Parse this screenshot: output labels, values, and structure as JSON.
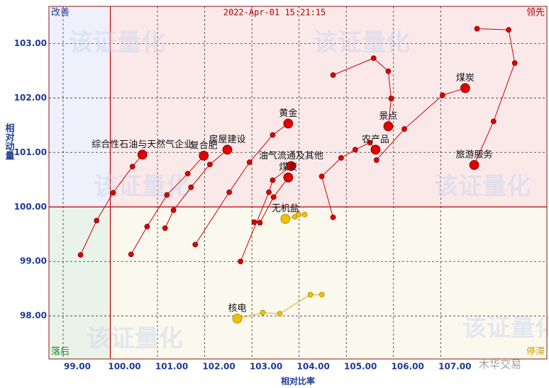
{
  "chart_data": {
    "type": "rrg",
    "timestamp": "2022-Apr-01 15:21:15",
    "x_label": "相对比率",
    "y_label": "相对动量",
    "quadrants": {
      "top_left": "改善",
      "top_right": "领先",
      "bottom_left": "落后",
      "bottom_right": "停滞"
    },
    "watermark": "该证量化",
    "logo": "木华交易",
    "reference": {
      "x": 100,
      "y": 100
    },
    "xlim": [
      98.7,
      109.25
    ],
    "ylim": [
      97.21,
      103.68
    ],
    "xticks": [
      {
        "value": 99,
        "label": "99.00"
      },
      {
        "value": 100,
        "label": "100.00"
      },
      {
        "value": 101,
        "label": "101.00"
      },
      {
        "value": 102,
        "label": "102.00"
      },
      {
        "value": 103,
        "label": "103.00"
      },
      {
        "value": 104,
        "label": "104.00"
      },
      {
        "value": 105,
        "label": "105.00"
      },
      {
        "value": 106,
        "label": "106.00"
      },
      {
        "value": 107,
        "label": "107.00"
      }
    ],
    "yticks": [
      {
        "value": 98,
        "label": "98.00"
      },
      {
        "value": 99,
        "label": "99.00"
      },
      {
        "value": 100,
        "label": "100.00"
      },
      {
        "value": 101,
        "label": "101.00"
      },
      {
        "value": 102,
        "label": "102.00"
      },
      {
        "value": 103,
        "label": "103.00"
      }
    ],
    "grid": true,
    "series": [
      {
        "name": "综合性石油与天然气企业",
        "color": "#e00000",
        "x": [
          99.37,
          99.71,
          100.06,
          100.47,
          100.68
        ],
        "values": [
          99.12,
          99.75,
          100.26,
          100.74,
          100.96
        ]
      },
      {
        "name": "复合肥",
        "color": "#e00000",
        "x": [
          100.44,
          100.78,
          101.2,
          101.64,
          101.98
        ],
        "values": [
          99.13,
          99.64,
          100.22,
          100.61,
          100.94
        ]
      },
      {
        "name": "房屋建设",
        "color": "#e00000",
        "x": [
          101.16,
          101.34,
          101.71,
          102.11,
          102.48
        ],
        "values": [
          99.61,
          99.94,
          100.36,
          100.78,
          101.05
        ]
      },
      {
        "name": "黄金",
        "color": "#e00000",
        "x": [
          101.8,
          102.52,
          102.95,
          103.44,
          103.77
        ],
        "values": [
          99.31,
          100.27,
          100.82,
          101.32,
          101.53
        ]
      },
      {
        "name": "油气流通及其他",
        "color": "#e00000",
        "x": [
          102.76,
          103.36,
          103.44,
          103.83
        ],
        "values": [
          99.0,
          100.27,
          100.49,
          100.75
        ]
      },
      {
        "name": "煤炭",
        "color": "#e00000",
        "x": [
          103.05,
          103.17,
          103.46,
          103.77
        ],
        "values": [
          99.72,
          99.71,
          100.18,
          100.54
        ]
      },
      {
        "name": "无机盐",
        "color": "#f0c000",
        "x": [
          104.12,
          103.99,
          103.91,
          103.71
        ],
        "values": [
          99.86,
          99.86,
          99.82,
          99.78
        ]
      },
      {
        "name": "农产品",
        "color": "#e00000",
        "x": [
          104.72,
          104.48,
          104.89,
          105.19,
          105.5,
          105.62
        ],
        "values": [
          99.81,
          100.56,
          100.9,
          101.05,
          101.18,
          101.05
        ]
      },
      {
        "name": "景点",
        "color": "#e00000",
        "x": [
          104.72,
          105.58,
          105.89,
          105.95,
          105.89
        ],
        "values": [
          102.42,
          102.73,
          102.49,
          101.99,
          101.48
        ]
      },
      {
        "name": "煤炭",
        "color": "#e00000",
        "x": [
          105.64,
          106.23,
          107.04,
          107.52
        ],
        "values": [
          100.86,
          101.43,
          102.05,
          102.18
        ]
      },
      {
        "name": "旅游服务",
        "color": "#e00000",
        "x": [
          107.77,
          108.44,
          108.57,
          108.12,
          107.71
        ],
        "values": [
          103.27,
          103.25,
          102.64,
          101.57,
          100.77
        ]
      },
      {
        "name": "核电",
        "color": "#f0c000",
        "x": [
          104.48,
          104.24,
          103.59,
          103.23,
          102.69
        ],
        "values": [
          98.39,
          98.39,
          98.04,
          98.06,
          97.95
        ]
      }
    ]
  }
}
